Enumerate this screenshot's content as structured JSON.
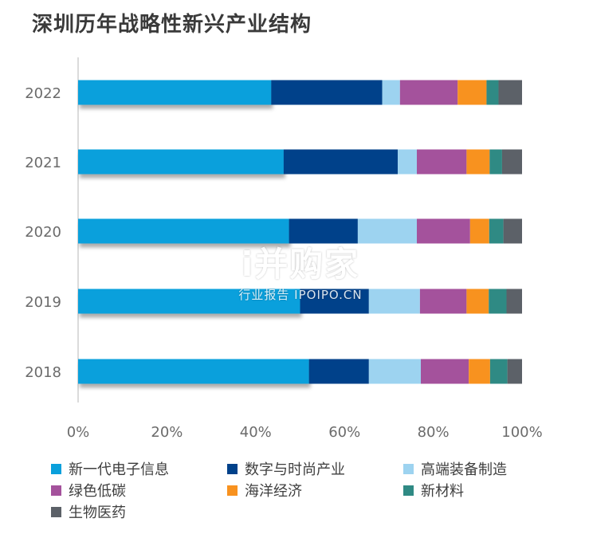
{
  "chart_data": {
    "type": "bar",
    "orientation": "horizontal",
    "stacked": true,
    "title": "深圳历年战略性新兴产业结构",
    "categories": [
      "2022",
      "2021",
      "2020",
      "2019",
      "2018"
    ],
    "x_ticks": [
      "0%",
      "20%",
      "40%",
      "60%",
      "80%",
      "100%"
    ],
    "xlim": [
      0,
      100
    ],
    "grid": false,
    "legend_position": "bottom",
    "series": [
      {
        "name": "新一代电子信息",
        "color": "#0aa0dc",
        "values": [
          43.5,
          46.3,
          47.5,
          50.0,
          52.0
        ]
      },
      {
        "name": "数字与时尚产业",
        "color": "#00418a",
        "values": [
          25.0,
          25.7,
          15.5,
          15.5,
          13.5
        ]
      },
      {
        "name": "高端装备制造",
        "color": "#9dd3f0",
        "values": [
          4.0,
          4.3,
          13.3,
          11.5,
          11.7
        ]
      },
      {
        "name": "绿色低碳",
        "color": "#a4529c",
        "values": [
          13.0,
          11.2,
          12.0,
          10.5,
          10.8
        ]
      },
      {
        "name": "海洋经济",
        "color": "#f8921f",
        "values": [
          6.5,
          5.2,
          4.3,
          5.0,
          4.8
        ]
      },
      {
        "name": "新材料",
        "color": "#2f8a84",
        "values": [
          2.7,
          2.8,
          3.2,
          4.0,
          3.9
        ]
      },
      {
        "name": "生物医药",
        "color": "#5c6168",
        "values": [
          5.3,
          4.5,
          4.2,
          3.5,
          3.3
        ]
      }
    ]
  },
  "watermark": {
    "main": "i并购家",
    "sub": "行业报告 IPOIPO.CN"
  }
}
